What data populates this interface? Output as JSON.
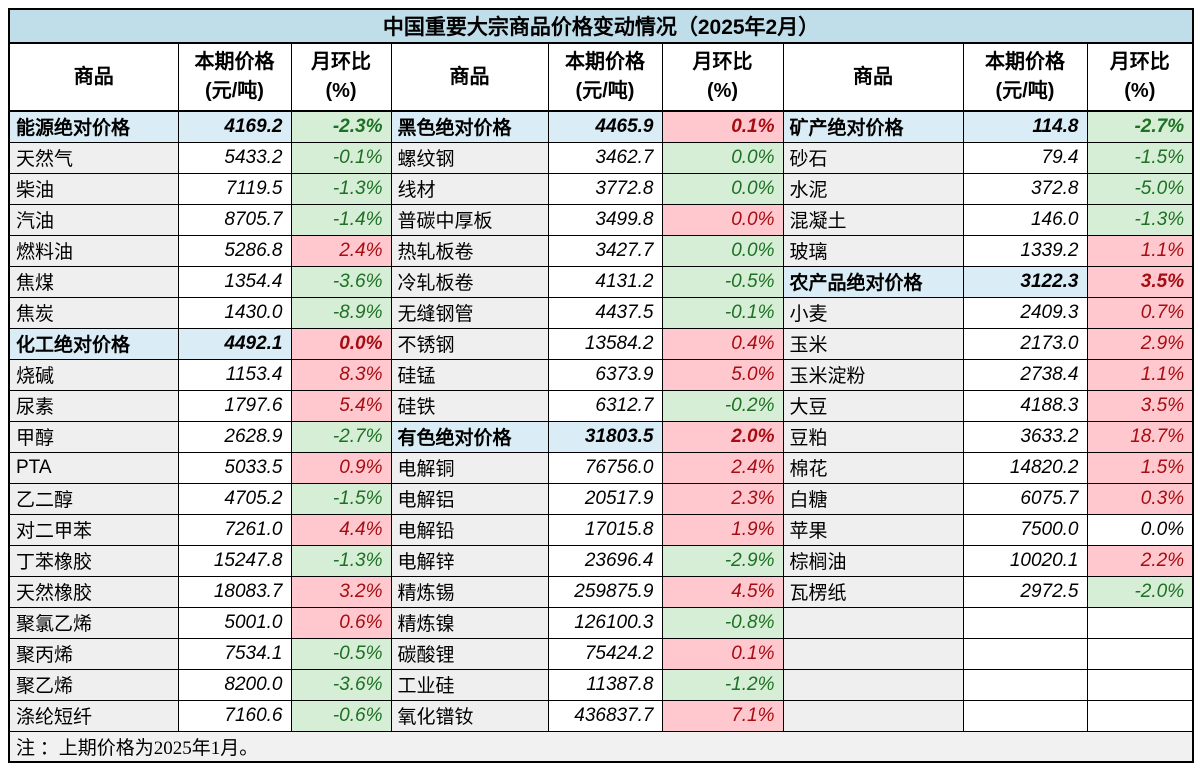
{
  "colors": {
    "title-bg": "#c0deea",
    "section-bg": "#daecf5",
    "name-bg": "#efefef",
    "up-bg": "#ffc7ce",
    "up-text": "#a50d12",
    "down-bg": "#d5eed5",
    "down-text": "#1d7024",
    "note-bg": "#f1f1f1",
    "border": "#000000"
  },
  "chart_data": {
    "type": "table",
    "title": "中国重要大宗商品价格变动情况（2025年2月）",
    "note": "注 ：上期价格为2025年1月。",
    "column_headers": {
      "commodity": "商品",
      "price_l1": "本期价格",
      "price_l2": "(元/吨)",
      "mom_l1": "月环比",
      "mom_l2": "(%)"
    },
    "row_count": 20,
    "groups": [
      {
        "name": "energy-chemical",
        "rows": [
          {
            "commodity": "能源绝对价格",
            "price": "4169.2",
            "mom": "-2.3%",
            "kind": "section",
            "dir": "down"
          },
          {
            "commodity": "天然气",
            "price": "5433.2",
            "mom": "-0.1%",
            "kind": "item",
            "dir": "down"
          },
          {
            "commodity": "柴油",
            "price": "7119.5",
            "mom": "-1.3%",
            "kind": "item",
            "dir": "down"
          },
          {
            "commodity": "汽油",
            "price": "8705.7",
            "mom": "-1.4%",
            "kind": "item",
            "dir": "down"
          },
          {
            "commodity": "燃料油",
            "price": "5286.8",
            "mom": "2.4%",
            "kind": "item",
            "dir": "up"
          },
          {
            "commodity": "焦煤",
            "price": "1354.4",
            "mom": "-3.6%",
            "kind": "item",
            "dir": "down"
          },
          {
            "commodity": "焦炭",
            "price": "1430.0",
            "mom": "-8.9%",
            "kind": "item",
            "dir": "down"
          },
          {
            "commodity": "化工绝对价格",
            "price": "4492.1",
            "mom": "0.0%",
            "kind": "section",
            "dir": "up"
          },
          {
            "commodity": "烧碱",
            "price": "1153.4",
            "mom": "8.3%",
            "kind": "item",
            "dir": "up"
          },
          {
            "commodity": "尿素",
            "price": "1797.6",
            "mom": "5.4%",
            "kind": "item",
            "dir": "up"
          },
          {
            "commodity": "甲醇",
            "price": "2628.9",
            "mom": "-2.7%",
            "kind": "item",
            "dir": "down"
          },
          {
            "commodity": "PTA",
            "price": "5033.5",
            "mom": "0.9%",
            "kind": "item",
            "dir": "up"
          },
          {
            "commodity": "乙二醇",
            "price": "4705.2",
            "mom": "-1.5%",
            "kind": "item",
            "dir": "down"
          },
          {
            "commodity": "对二甲苯",
            "price": "7261.0",
            "mom": "4.4%",
            "kind": "item",
            "dir": "up"
          },
          {
            "commodity": "丁苯橡胶",
            "price": "15247.8",
            "mom": "-1.3%",
            "kind": "item",
            "dir": "down"
          },
          {
            "commodity": "天然橡胶",
            "price": "18083.7",
            "mom": "3.2%",
            "kind": "item",
            "dir": "up"
          },
          {
            "commodity": "聚氯乙烯",
            "price": "5001.0",
            "mom": "0.6%",
            "kind": "item",
            "dir": "up"
          },
          {
            "commodity": "聚丙烯",
            "price": "7534.1",
            "mom": "-0.5%",
            "kind": "item",
            "dir": "down"
          },
          {
            "commodity": "聚乙烯",
            "price": "8200.0",
            "mom": "-3.6%",
            "kind": "item",
            "dir": "down"
          },
          {
            "commodity": "涤纶短纤",
            "price": "7160.6",
            "mom": "-0.6%",
            "kind": "item",
            "dir": "down"
          }
        ]
      },
      {
        "name": "ferrous-nonferrous",
        "rows": [
          {
            "commodity": "黑色绝对价格",
            "price": "4465.9",
            "mom": "0.1%",
            "kind": "section",
            "dir": "up"
          },
          {
            "commodity": "螺纹钢",
            "price": "3462.7",
            "mom": "0.0%",
            "kind": "item",
            "dir": "down"
          },
          {
            "commodity": "线材",
            "price": "3772.8",
            "mom": "0.0%",
            "kind": "item",
            "dir": "down"
          },
          {
            "commodity": "普碳中厚板",
            "price": "3499.8",
            "mom": "0.0%",
            "kind": "item",
            "dir": "up"
          },
          {
            "commodity": "热轧板卷",
            "price": "3427.7",
            "mom": "0.0%",
            "kind": "item",
            "dir": "down"
          },
          {
            "commodity": "冷轧板卷",
            "price": "4131.2",
            "mom": "-0.5%",
            "kind": "item",
            "dir": "down"
          },
          {
            "commodity": "无缝钢管",
            "price": "4437.5",
            "mom": "-0.1%",
            "kind": "item",
            "dir": "down"
          },
          {
            "commodity": "不锈钢",
            "price": "13584.2",
            "mom": "0.4%",
            "kind": "item",
            "dir": "up"
          },
          {
            "commodity": "硅锰",
            "price": "6373.9",
            "mom": "5.0%",
            "kind": "item",
            "dir": "up"
          },
          {
            "commodity": "硅铁",
            "price": "6312.7",
            "mom": "-0.2%",
            "kind": "item",
            "dir": "down"
          },
          {
            "commodity": "有色绝对价格",
            "price": "31803.5",
            "mom": "2.0%",
            "kind": "section",
            "dir": "up"
          },
          {
            "commodity": "电解铜",
            "price": "76756.0",
            "mom": "2.4%",
            "kind": "item",
            "dir": "up"
          },
          {
            "commodity": "电解铝",
            "price": "20517.9",
            "mom": "2.3%",
            "kind": "item",
            "dir": "up"
          },
          {
            "commodity": "电解铅",
            "price": "17015.8",
            "mom": "1.9%",
            "kind": "item",
            "dir": "up"
          },
          {
            "commodity": "电解锌",
            "price": "23696.4",
            "mom": "-2.9%",
            "kind": "item",
            "dir": "down"
          },
          {
            "commodity": "精炼锡",
            "price": "259875.9",
            "mom": "4.5%",
            "kind": "item",
            "dir": "up"
          },
          {
            "commodity": "精炼镍",
            "price": "126100.3",
            "mom": "-0.8%",
            "kind": "item",
            "dir": "down"
          },
          {
            "commodity": "碳酸锂",
            "price": "75424.2",
            "mom": "0.1%",
            "kind": "item",
            "dir": "up"
          },
          {
            "commodity": "工业硅",
            "price": "11387.8",
            "mom": "-1.2%",
            "kind": "item",
            "dir": "down"
          },
          {
            "commodity": "氧化镨钕",
            "price": "436837.7",
            "mom": "7.1%",
            "kind": "item",
            "dir": "up"
          }
        ]
      },
      {
        "name": "mineral-agricultural",
        "rows": [
          {
            "commodity": "矿产绝对价格",
            "price": "114.8",
            "mom": "-2.7%",
            "kind": "section",
            "dir": "down"
          },
          {
            "commodity": "砂石",
            "price": "79.4",
            "mom": "-1.5%",
            "kind": "item",
            "dir": "down"
          },
          {
            "commodity": "水泥",
            "price": "372.8",
            "mom": "-5.0%",
            "kind": "item",
            "dir": "down"
          },
          {
            "commodity": "混凝土",
            "price": "146.0",
            "mom": "-1.3%",
            "kind": "item",
            "dir": "down"
          },
          {
            "commodity": "玻璃",
            "price": "1339.2",
            "mom": "1.1%",
            "kind": "item",
            "dir": "up"
          },
          {
            "commodity": "农产品绝对价格",
            "price": "3122.3",
            "mom": "3.5%",
            "kind": "section",
            "dir": "up"
          },
          {
            "commodity": "小麦",
            "price": "2409.3",
            "mom": "0.7%",
            "kind": "item",
            "dir": "up"
          },
          {
            "commodity": "玉米",
            "price": "2173.0",
            "mom": "2.9%",
            "kind": "item",
            "dir": "up"
          },
          {
            "commodity": "玉米淀粉",
            "price": "2738.4",
            "mom": "1.1%",
            "kind": "item",
            "dir": "up"
          },
          {
            "commodity": "大豆",
            "price": "4188.3",
            "mom": "3.5%",
            "kind": "item",
            "dir": "up"
          },
          {
            "commodity": "豆粕",
            "price": "3633.2",
            "mom": "18.7%",
            "kind": "item",
            "dir": "up"
          },
          {
            "commodity": "棉花",
            "price": "14820.2",
            "mom": "1.5%",
            "kind": "item",
            "dir": "up"
          },
          {
            "commodity": "白糖",
            "price": "6075.7",
            "mom": "0.3%",
            "kind": "item",
            "dir": "up"
          },
          {
            "commodity": "苹果",
            "price": "7500.0",
            "mom": "0.0%",
            "kind": "item",
            "dir": "flat"
          },
          {
            "commodity": "棕榈油",
            "price": "10020.1",
            "mom": "2.2%",
            "kind": "item",
            "dir": "up"
          },
          {
            "commodity": "瓦楞纸",
            "price": "2972.5",
            "mom": "-2.0%",
            "kind": "item",
            "dir": "down"
          }
        ]
      }
    ]
  }
}
